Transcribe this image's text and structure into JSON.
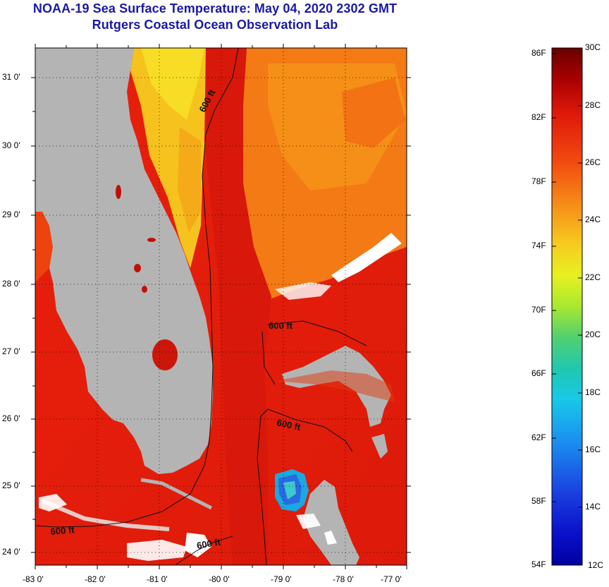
{
  "title": {
    "line1": "NOAA-19 Sea Surface Temperature:  May 04, 2020 2302 GMT",
    "line2": "Rutgers Coastal Ocean Observation Lab"
  },
  "map": {
    "lon_labels": [
      "-83 0'",
      "-82 0'",
      "-81 0'",
      "-80 0'",
      "-79 0'",
      "-78 0'",
      "-77 0'"
    ],
    "lat_labels": [
      "31 0'",
      "30 0'",
      "29 0'",
      "28 0'",
      "27 0'",
      "26 0'",
      "25 0'",
      "24 0'"
    ],
    "contour_labels": [
      "600 ft",
      "600 ft",
      "600 ft",
      "600 ft",
      "600 ft"
    ],
    "land_color": "#b4b4b4",
    "cloud_color": "#ffffff"
  },
  "colorbar": {
    "fahrenheit_labels": [
      "86F",
      "82F",
      "78F",
      "74F",
      "70F",
      "66F",
      "62F",
      "58F",
      "54F"
    ],
    "celsius_labels": [
      "30C",
      "28C",
      "26C",
      "24C",
      "22C",
      "20C",
      "18C",
      "16C",
      "14C",
      "12C"
    ],
    "range_c": [
      12,
      30
    ],
    "range_f": [
      54,
      86
    ]
  }
}
